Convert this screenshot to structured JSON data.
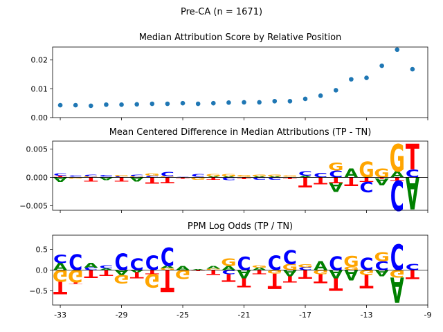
{
  "figure": {
    "suptitle": "Pre-CA (n = 1671)"
  },
  "colors": {
    "A": "#008000",
    "C": "#0000ff",
    "G": "#ffa500",
    "T": "#ff0000",
    "dot": "#1f77b4"
  },
  "chart_data": [
    {
      "type": "scatter",
      "title": "Median Attribution Score by Relative Position",
      "xlabel": "",
      "ylabel": "",
      "x": [
        -33,
        -32,
        -31,
        -30,
        -29,
        -28,
        -27,
        -26,
        -25,
        -24,
        -23,
        -22,
        -21,
        -20,
        -19,
        -18,
        -17,
        -16,
        -15,
        -14,
        -13,
        -12,
        -11,
        -10
      ],
      "y": [
        0.0043,
        0.0043,
        0.0041,
        0.0045,
        0.0045,
        0.0046,
        0.0048,
        0.0048,
        0.005,
        0.0048,
        0.005,
        0.0052,
        0.0053,
        0.0053,
        0.0057,
        0.0057,
        0.0065,
        0.0076,
        0.0095,
        0.0133,
        0.0138,
        0.018,
        0.0236,
        0.0168
      ],
      "xlim": [
        -33.5,
        -9
      ],
      "ylim": [
        0,
        0.0245
      ],
      "yticks": [
        "0.00",
        "0.01",
        "0.02"
      ],
      "ytick_values": [
        0,
        0.01,
        0.02
      ],
      "grid": false
    },
    {
      "type": "sequence-logo",
      "title": "Mean Centered Difference in Median Attributions (TP - TN)",
      "xlabel": "",
      "ylabel": "",
      "ylim": [
        -0.0058,
        0.0064
      ],
      "yticks": [
        "0.005",
        "0.000",
        "−0.005"
      ],
      "ytick_values": [
        0.005,
        0,
        -0.005
      ],
      "positions": [
        {
          "x": -33,
          "up": [
            [
              "T",
              0.0003
            ],
            [
              "C",
              0.0004
            ]
          ],
          "down": [
            [
              "A",
              0.0008
            ]
          ]
        },
        {
          "x": -32,
          "up": [
            [
              "T",
              0.0001
            ],
            [
              "C",
              0.0002
            ]
          ],
          "down": [
            [
              "G",
              0.0002
            ]
          ]
        },
        {
          "x": -31,
          "up": [
            [
              "G",
              0.0002
            ],
            [
              "C",
              0.0003
            ]
          ],
          "down": [
            [
              "T",
              0.0007
            ]
          ]
        },
        {
          "x": -30,
          "up": [
            [
              "G",
              0.0001
            ],
            [
              "C",
              0.0003
            ]
          ],
          "down": [
            [
              "A",
              0.0005
            ]
          ]
        },
        {
          "x": -29,
          "up": [
            [
              "C",
              0.0002
            ],
            [
              "G",
              0.0002
            ]
          ],
          "down": [
            [
              "T",
              0.0007
            ]
          ]
        },
        {
          "x": -28,
          "up": [
            [
              "G",
              0.0002
            ],
            [
              "C",
              0.0003
            ]
          ],
          "down": [
            [
              "A",
              0.0007
            ]
          ]
        },
        {
          "x": -27,
          "up": [
            [
              "C",
              0.0003
            ],
            [
              "G",
              0.0004
            ]
          ],
          "down": [
            [
              "T",
              0.0011
            ]
          ]
        },
        {
          "x": -26,
          "up": [
            [
              "G",
              0.0002
            ],
            [
              "C",
              0.0008
            ]
          ],
          "down": [
            [
              "T",
              0.001
            ]
          ]
        },
        {
          "x": -25,
          "up": [
            [
              "G",
              0.0001
            ],
            [
              "C",
              0.0001
            ]
          ],
          "down": [
            [
              "T",
              0.0002
            ]
          ]
        },
        {
          "x": -24,
          "up": [
            [
              "A",
              0.0001
            ],
            [
              "C",
              0.0005
            ]
          ],
          "down": [
            [
              "G",
              0.0004
            ]
          ]
        },
        {
          "x": -23,
          "up": [
            [
              "A",
              0.0002
            ],
            [
              "G",
              0.0004
            ]
          ],
          "down": [
            [
              "T",
              0.0004
            ]
          ]
        },
        {
          "x": -22,
          "up": [
            [
              "A",
              0.0002
            ],
            [
              "G",
              0.0004
            ]
          ],
          "down": [
            [
              "C",
              0.0005
            ]
          ]
        },
        {
          "x": -21,
          "up": [
            [
              "A",
              0.0001
            ],
            [
              "G",
              0.0003
            ]
          ],
          "down": [
            [
              "T",
              0.0003
            ]
          ]
        },
        {
          "x": -20,
          "up": [
            [
              "A",
              0.0002
            ],
            [
              "G",
              0.0003
            ]
          ],
          "down": [
            [
              "C",
              0.0004
            ]
          ]
        },
        {
          "x": -19,
          "up": [
            [
              "A",
              0.0002
            ],
            [
              "G",
              0.0003
            ]
          ],
          "down": [
            [
              "C",
              0.0004
            ]
          ]
        },
        {
          "x": -18,
          "up": [
            [
              "A",
              0.0001
            ],
            [
              "G",
              0.0002
            ]
          ],
          "down": [
            [
              "T",
              0.0003
            ]
          ]
        },
        {
          "x": -17,
          "up": [
            [
              "A",
              0.0003
            ],
            [
              "C",
              0.0008
            ]
          ],
          "down": [
            [
              "T",
              0.0017
            ]
          ]
        },
        {
          "x": -16,
          "up": [
            [
              "C",
              0.0008
            ]
          ],
          "down": [
            [
              "T",
              0.0012
            ]
          ]
        },
        {
          "x": -15,
          "up": [
            [
              "C",
              0.0012
            ],
            [
              "G",
              0.0014
            ]
          ],
          "down": [
            [
              "T",
              0.001
            ],
            [
              "A",
              0.0016
            ]
          ]
        },
        {
          "x": -14,
          "up": [
            [
              "A",
              0.0016
            ]
          ],
          "down": [
            [
              "T",
              0.0015
            ]
          ]
        },
        {
          "x": -13,
          "up": [
            [
              "G",
              0.0028
            ]
          ],
          "down": [
            [
              "T",
              0.0008
            ],
            [
              "C",
              0.0018
            ]
          ]
        },
        {
          "x": -12,
          "up": [
            [
              "G",
              0.0016
            ]
          ],
          "down": [
            [
              "T",
              0.0002
            ],
            [
              "A",
              0.0012
            ]
          ]
        },
        {
          "x": -11,
          "up": [
            [
              "A",
              0.0011
            ],
            [
              "G",
              0.0048
            ]
          ],
          "down": [
            [
              "T",
              0.0006
            ],
            [
              "C",
              0.0053
            ]
          ]
        },
        {
          "x": -10,
          "up": [
            [
              "C",
              0.0014
            ],
            [
              "T",
              0.0045
            ]
          ],
          "down": [
            [
              "A",
              0.0056
            ]
          ]
        }
      ]
    },
    {
      "type": "sequence-logo",
      "title": "PPM Log Odds (TP / TN)",
      "xlabel": "",
      "ylabel": "",
      "ylim": [
        -0.84,
        0.84
      ],
      "yticks": [
        "0.5",
        "0.0",
        "−0.5"
      ],
      "ytick_values": [
        0.5,
        0,
        -0.5
      ],
      "xticks": [
        "-33",
        "-29",
        "-25",
        "-21",
        "-17",
        "-13",
        "-9"
      ],
      "xtick_values": [
        -33,
        -29,
        -25,
        -21,
        -17,
        -13,
        -9
      ],
      "positions": [
        {
          "x": -33,
          "up": [
            [
              "A",
              0.17
            ],
            [
              "C",
              0.2
            ]
          ],
          "down": [
            [
              "G",
              0.28
            ],
            [
              "T",
              0.3
            ]
          ]
        },
        {
          "x": -32,
          "up": [
            [
              "C",
              0.38
            ]
          ],
          "down": [
            [
              "G",
              0.3
            ],
            [
              "T",
              0.03
            ]
          ]
        },
        {
          "x": -31,
          "up": [
            [
              "C",
              0.06
            ],
            [
              "A",
              0.12
            ]
          ],
          "down": [
            [
              "T",
              0.19
            ]
          ]
        },
        {
          "x": -30,
          "up": [
            [
              "A",
              0.04
            ],
            [
              "C",
              0.07
            ]
          ],
          "down": [
            [
              "T",
              0.14
            ]
          ]
        },
        {
          "x": -29,
          "up": [
            [
              "C",
              0.4
            ]
          ],
          "down": [
            [
              "A",
              0.12
            ],
            [
              "G",
              0.2
            ]
          ]
        },
        {
          "x": -28,
          "up": [
            [
              "C",
              0.28
            ]
          ],
          "down": [
            [
              "A",
              0.05
            ],
            [
              "T",
              0.15
            ]
          ]
        },
        {
          "x": -27,
          "up": [
            [
              "C",
              0.35
            ]
          ],
          "down": [
            [
              "T",
              0.1
            ],
            [
              "G",
              0.32
            ]
          ]
        },
        {
          "x": -26,
          "up": [
            [
              "G",
              0.05
            ],
            [
              "A",
              0.05
            ],
            [
              "C",
              0.44
            ]
          ],
          "down": [
            [
              "T",
              0.53
            ]
          ]
        },
        {
          "x": -25,
          "up": [
            [
              "A",
              0.1
            ]
          ],
          "down": [
            [
              "G",
              0.22
            ]
          ]
        },
        {
          "x": -24,
          "up": [
            [
              "A",
              0.02
            ]
          ],
          "down": [
            [
              "T",
              0.02
            ]
          ]
        },
        {
          "x": -23,
          "up": [
            [
              "G",
              0.03
            ],
            [
              "A",
              0.06
            ]
          ],
          "down": [
            [
              "T",
              0.12
            ]
          ]
        },
        {
          "x": -22,
          "up": [
            [
              "A",
              0.1
            ],
            [
              "G",
              0.18
            ]
          ],
          "down": [
            [
              "C",
              0.1
            ],
            [
              "T",
              0.18
            ]
          ]
        },
        {
          "x": -21,
          "up": [
            [
              "C",
              0.32
            ]
          ],
          "down": [
            [
              "A",
              0.2
            ],
            [
              "T",
              0.22
            ]
          ]
        },
        {
          "x": -20,
          "up": [
            [
              "A",
              0.06
            ],
            [
              "G",
              0.05
            ]
          ],
          "down": [
            [
              "T",
              0.1
            ]
          ]
        },
        {
          "x": -19,
          "up": [
            [
              "C",
              0.35
            ]
          ],
          "down": [
            [
              "G",
              0.08
            ],
            [
              "T",
              0.37
            ]
          ]
        },
        {
          "x": -18,
          "up": [
            [
              "G",
              0.15
            ],
            [
              "C",
              0.33
            ]
          ],
          "down": [
            [
              "A",
              0.15
            ],
            [
              "T",
              0.15
            ]
          ]
        },
        {
          "x": -17,
          "up": [
            [
              "C",
              0.07
            ],
            [
              "G",
              0.07
            ]
          ],
          "down": [
            [
              "T",
              0.2
            ]
          ]
        },
        {
          "x": -16,
          "up": [
            [
              "A",
              0.22
            ]
          ],
          "down": [
            [
              "G",
              0.1
            ],
            [
              "T",
              0.22
            ]
          ]
        },
        {
          "x": -15,
          "up": [
            [
              "C",
              0.33
            ]
          ],
          "down": [
            [
              "A",
              0.2
            ],
            [
              "T",
              0.3
            ]
          ]
        },
        {
          "x": -14,
          "up": [
            [
              "G",
              0.08
            ],
            [
              "G",
              0.26
            ]
          ],
          "down": [
            [
              "A",
              0.25
            ]
          ]
        },
        {
          "x": -13,
          "up": [
            [
              "C",
              0.3
            ]
          ],
          "down": [
            [
              "G",
              0.12
            ],
            [
              "T",
              0.32
            ]
          ]
        },
        {
          "x": -12,
          "up": [
            [
              "C",
              0.22
            ],
            [
              "G",
              0.22
            ]
          ],
          "down": [
            [
              "A",
              0.15
            ]
          ]
        },
        {
          "x": -11,
          "up": [
            [
              "C",
              0.62
            ]
          ],
          "down": [
            [
              "G",
              0.18
            ],
            [
              "A",
              0.6
            ]
          ]
        },
        {
          "x": -10,
          "up": [
            [
              "C",
              0.15
            ]
          ],
          "down": [
            [
              "T",
              0.22
            ]
          ]
        }
      ]
    }
  ]
}
